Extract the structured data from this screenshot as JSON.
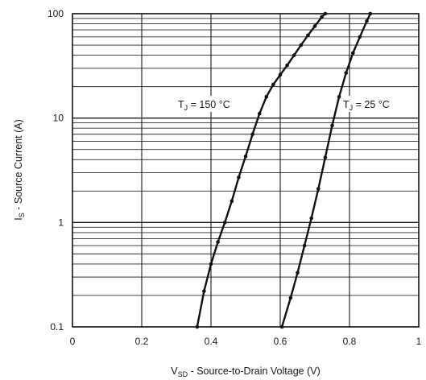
{
  "chart_data": {
    "type": "line",
    "x_axis": {
      "label_main": "V",
      "label_sub": "SD",
      "label_rest": " - Source-to-Drain Voltage (V)",
      "range": [
        0,
        1
      ],
      "ticks": [
        0,
        0.2,
        0.4,
        0.6,
        0.8,
        1
      ],
      "tick_labels": [
        "0",
        "0.2",
        "0.4",
        "0.6",
        "0.8",
        "1"
      ]
    },
    "y_axis": {
      "label_main": "I",
      "label_sub": "S",
      "label_rest": " - Source Current (A)",
      "scale": "log",
      "range": [
        0.1,
        100
      ],
      "ticks": [
        0.1,
        1,
        10,
        100
      ],
      "tick_labels": [
        "0.1",
        "1",
        "10",
        "100"
      ]
    },
    "grid": true,
    "series": [
      {
        "name_main": "T",
        "name_sub": "J",
        "name_rest": " = 150 °C",
        "color": "#111111",
        "points": [
          [
            0.36,
            0.1
          ],
          [
            0.38,
            0.22
          ],
          [
            0.4,
            0.4
          ],
          [
            0.42,
            0.65
          ],
          [
            0.44,
            1.0
          ],
          [
            0.46,
            1.6
          ],
          [
            0.48,
            2.7
          ],
          [
            0.5,
            4.3
          ],
          [
            0.52,
            7.0
          ],
          [
            0.54,
            11
          ],
          [
            0.56,
            16
          ],
          [
            0.58,
            21
          ],
          [
            0.6,
            26
          ],
          [
            0.62,
            32
          ],
          [
            0.64,
            40
          ],
          [
            0.66,
            50
          ],
          [
            0.68,
            62
          ],
          [
            0.7,
            76
          ],
          [
            0.72,
            93
          ],
          [
            0.73,
            100
          ]
        ]
      },
      {
        "name_main": "T",
        "name_sub": "J",
        "name_rest": " = 25 °C",
        "color": "#111111",
        "points": [
          [
            0.605,
            0.1
          ],
          [
            0.63,
            0.19
          ],
          [
            0.65,
            0.33
          ],
          [
            0.67,
            0.6
          ],
          [
            0.69,
            1.1
          ],
          [
            0.71,
            2.1
          ],
          [
            0.73,
            4.2
          ],
          [
            0.75,
            8.5
          ],
          [
            0.77,
            16
          ],
          [
            0.79,
            27
          ],
          [
            0.81,
            42
          ],
          [
            0.83,
            60
          ],
          [
            0.85,
            85
          ],
          [
            0.86,
            100
          ]
        ]
      }
    ]
  }
}
